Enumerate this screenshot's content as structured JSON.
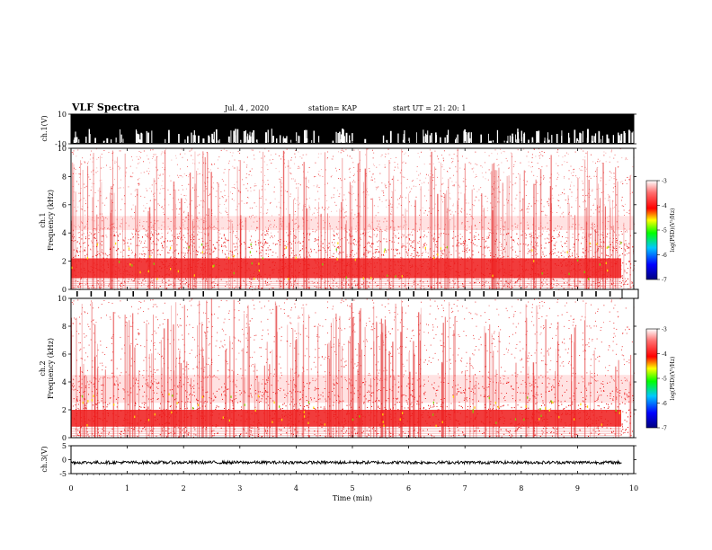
{
  "header": {
    "title": "VLF Spectra",
    "date": "Jul. 4 , 2020",
    "station": "station= KAP",
    "start": "start UT =  21: 20: 1"
  },
  "chart_data": [
    {
      "type": "line",
      "panel": "ch1-waveform",
      "ylabel": "ch.1(V)",
      "ylim": [
        -10,
        10
      ],
      "yticks": [
        "10",
        "-10"
      ],
      "note": "saturated broadband waveform, amplitude clipped near ±10 V"
    },
    {
      "type": "heatmap",
      "panel": "ch1-spectrogram",
      "ylabel": "ch.1\nFrequency (kHz)",
      "ylim": [
        0,
        10
      ],
      "yticks": [
        "0",
        "2",
        "4",
        "6",
        "8",
        "10"
      ],
      "xlim": [
        0,
        10
      ],
      "intensity_band_khz": [
        0.8,
        2.2
      ],
      "secondary_band_khz": [
        4.2,
        5.2
      ],
      "colorbar": {
        "label": "log(PSD)(V²/Hz)",
        "range": [
          -7,
          -3
        ],
        "ticks": [
          "-3",
          "-4",
          "-5",
          "-6",
          "-7"
        ]
      }
    },
    {
      "type": "heatmap",
      "panel": "ch2-spectrogram",
      "ylabel": "ch.2\nFrequency (kHz)",
      "ylim": [
        0,
        10
      ],
      "yticks": [
        "0",
        "2",
        "4",
        "6",
        "8",
        "10"
      ],
      "xlim": [
        0,
        10
      ],
      "intensity_band_khz": [
        0.8,
        2.0
      ],
      "secondary_band_khz": [
        2.5,
        4.5
      ],
      "colorbar": {
        "label": "log(PSD)(V²/Hz)",
        "range": [
          -7,
          -3
        ],
        "ticks": [
          "-3",
          "-4",
          "-5",
          "-6",
          "-7"
        ]
      }
    },
    {
      "type": "line",
      "panel": "ch3-waveform",
      "ylabel": "ch.3(V)",
      "ylim": [
        -5,
        5
      ],
      "yticks": [
        "5",
        "0",
        "-5"
      ],
      "note": "steady trace near -1 V with small noise"
    }
  ],
  "xaxis": {
    "label": "Time (min)",
    "ticks": [
      "0",
      "1",
      "2",
      "3",
      "4",
      "5",
      "6",
      "7",
      "8",
      "9",
      "10"
    ]
  },
  "colors": {
    "dark": "#00008b",
    "low": "#0000ff",
    "mid": "#00ff00",
    "high": "#ffff00",
    "strong": "#ff0000",
    "max": "#ffffff",
    "trace": "#000000"
  }
}
